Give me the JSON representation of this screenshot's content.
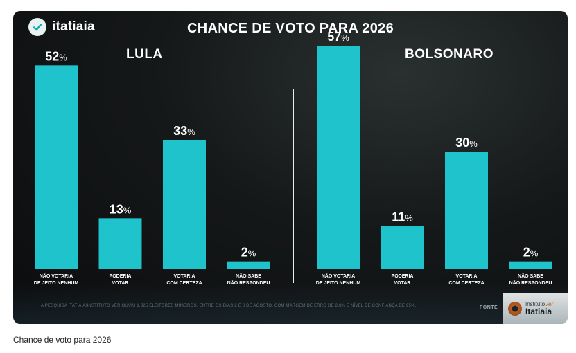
{
  "header": {
    "logo_text": "itatiaia",
    "title": "CHANCE DE VOTO PARA 2026"
  },
  "chart_data": [
    {
      "type": "bar",
      "title": "LULA",
      "categories": [
        [
          "NÃO VOTARIA",
          "DE JEITO NENHUM"
        ],
        [
          "PODERIA",
          "VOTAR"
        ],
        [
          "VOTARIA",
          "COM CERTEZA"
        ],
        [
          "NÃO SABE",
          "NÃO RESPONDEU"
        ]
      ],
      "values": [
        52,
        13,
        33,
        2
      ],
      "unit": "%",
      "bar_color": "#1ec3cb",
      "ylim": [
        0,
        57
      ]
    },
    {
      "type": "bar",
      "title": "BOLSONARO",
      "categories": [
        [
          "NÃO VOTARIA",
          "DE JEITO NENHUM"
        ],
        [
          "PODERIA",
          "VOTAR"
        ],
        [
          "VOTARIA",
          "COM CERTEZA"
        ],
        [
          "NÃO SABE",
          "NÃO RESPONDEU"
        ]
      ],
      "values": [
        57,
        11,
        30,
        2
      ],
      "unit": "%",
      "bar_color": "#1ec3cb",
      "ylim": [
        0,
        57
      ]
    }
  ],
  "footer": {
    "note": "A PESQUISA ITATIAIA/INSTITUTO VER OUVIU 1.325 ELEITORES MINEIROS, ENTRE OS DIAS 2 E 6 DE AGOSTO, COM MARGEM DE ERRO DE 2,8% E NÍVEL DE CONFIANÇA DE 95%.",
    "source_label": "FONTE",
    "sponsor_top_a": "Instituto",
    "sponsor_top_b": "Ver",
    "sponsor_bottom": "Itatiaia"
  },
  "caption": "Chance de voto para 2026"
}
